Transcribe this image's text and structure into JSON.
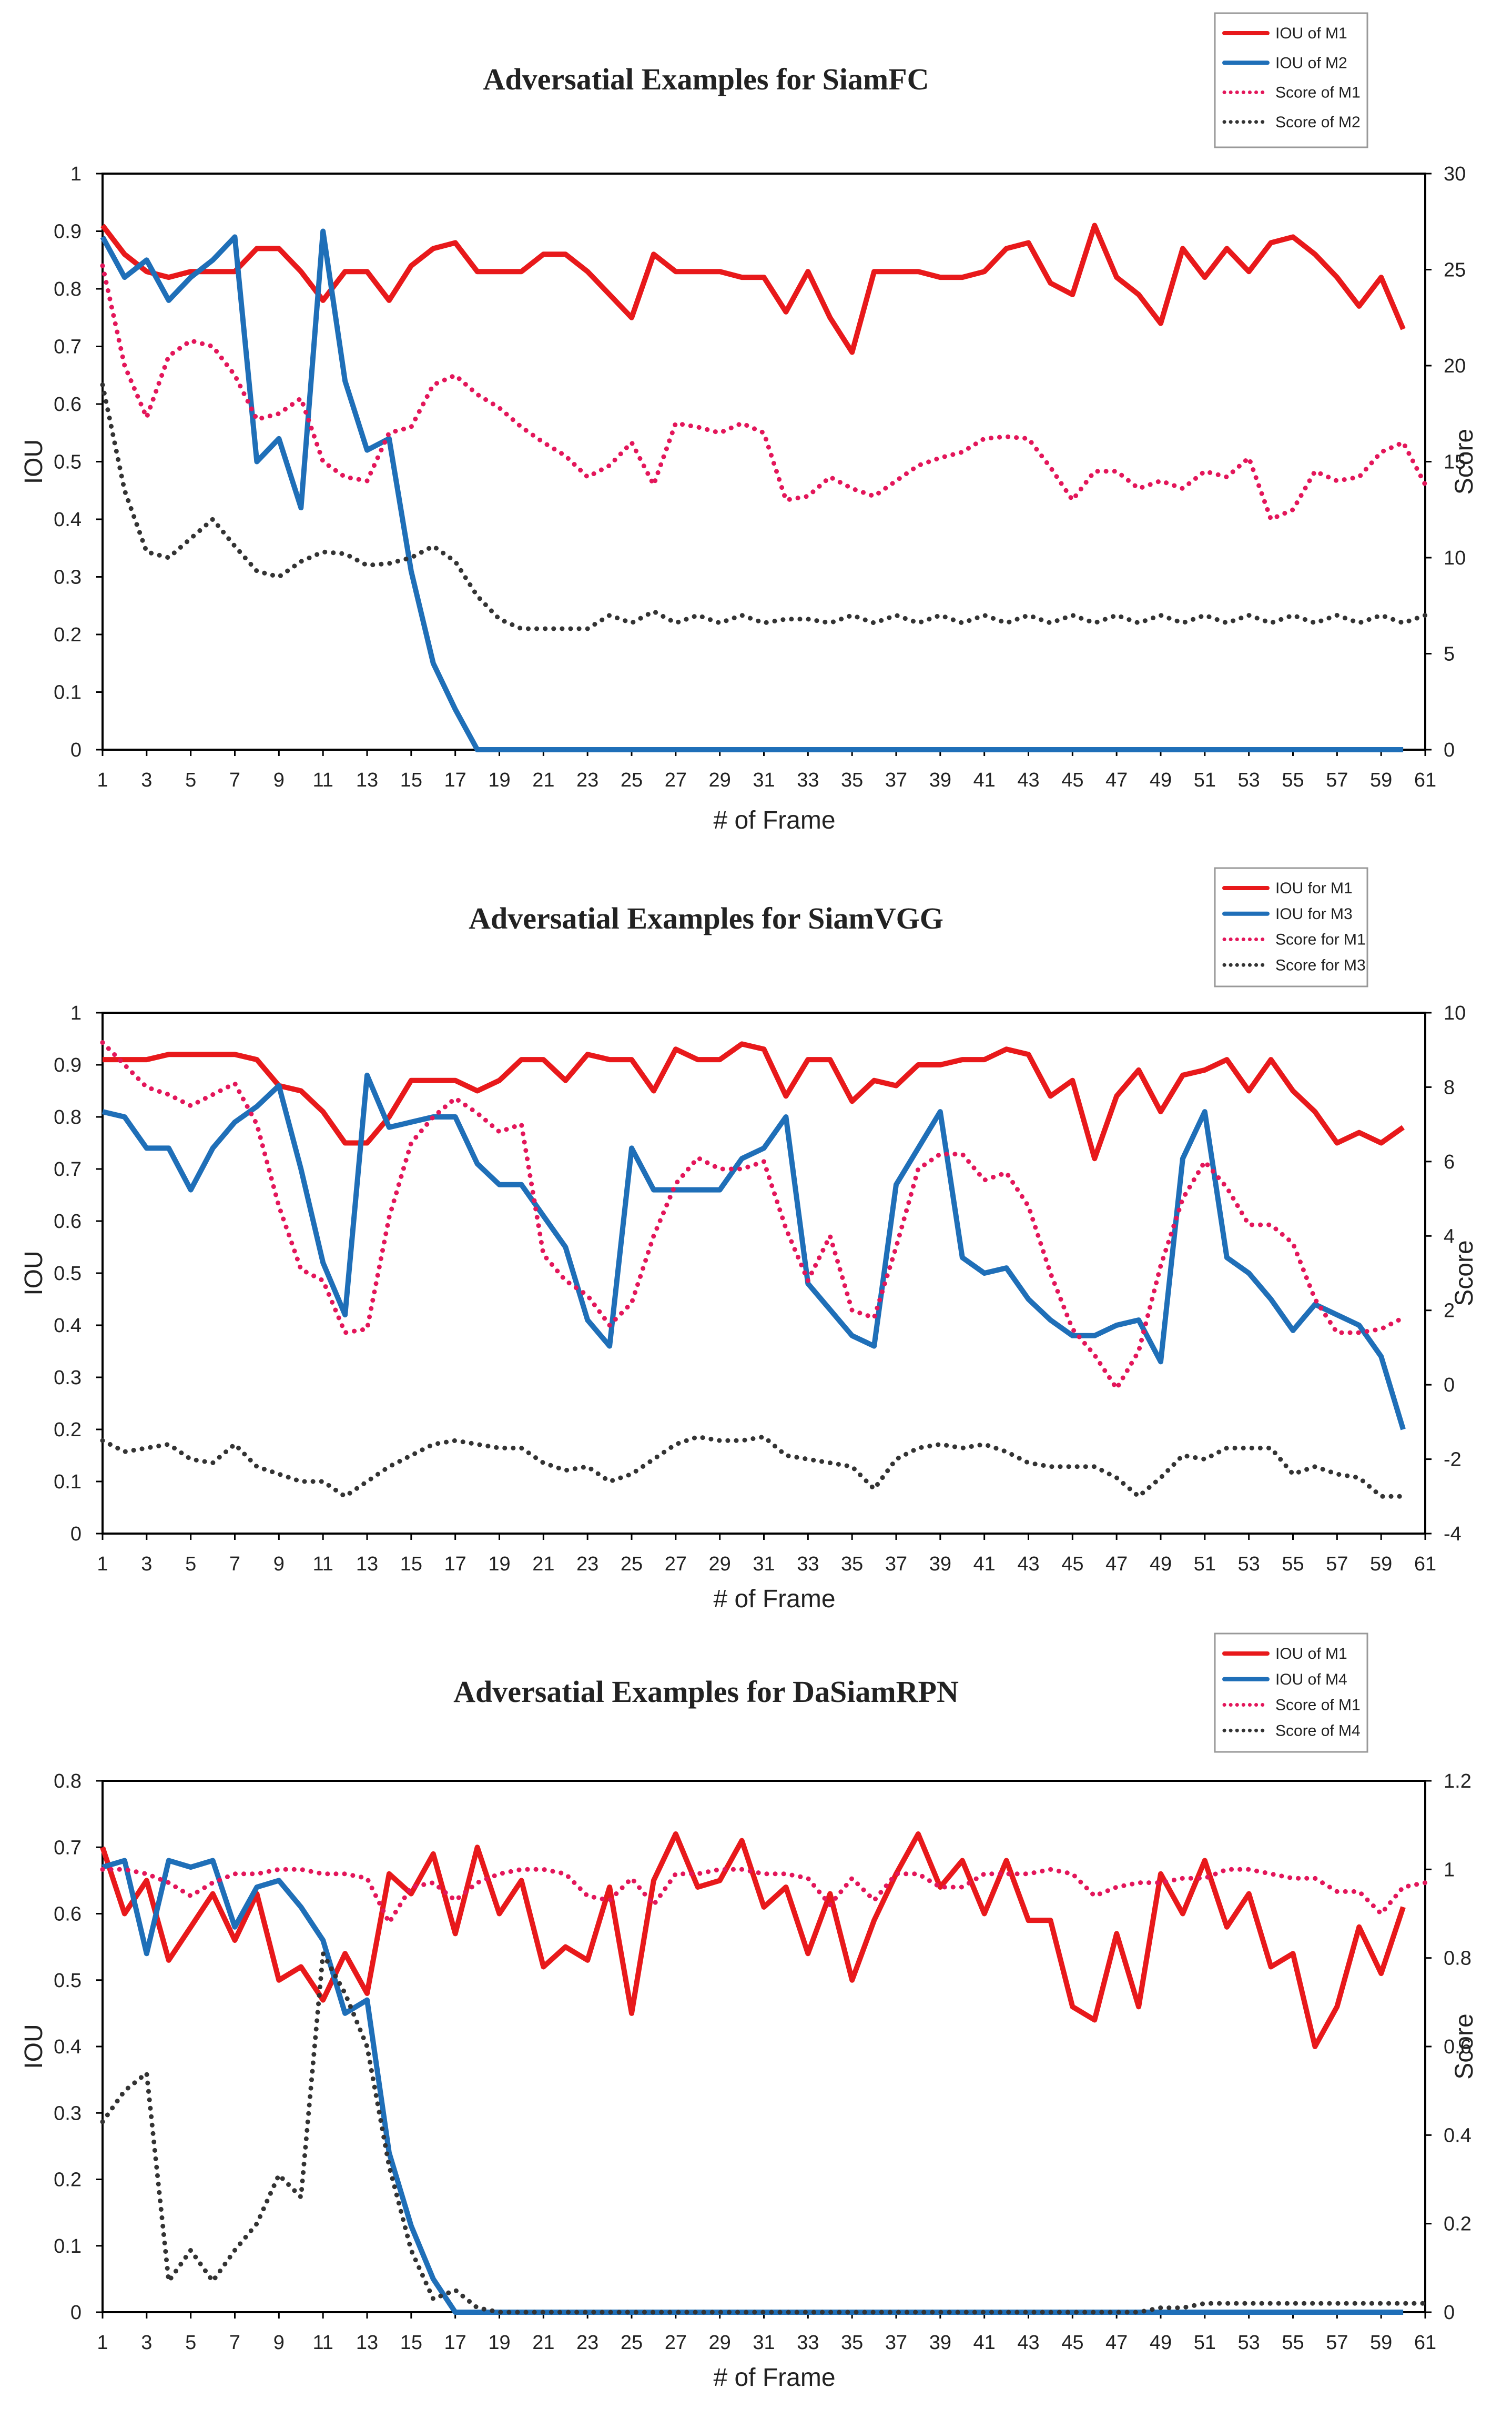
{
  "chart_data": [
    {
      "type": "line",
      "title": "Adversatial Examples for SiamFC",
      "xlabel": "# of Frame",
      "ylabel": "IOU",
      "y2label": "Score",
      "xlim": [
        1,
        61
      ],
      "xticks": [
        1,
        3,
        5,
        7,
        9,
        11,
        13,
        15,
        17,
        19,
        21,
        23,
        25,
        27,
        29,
        31,
        33,
        35,
        37,
        39,
        41,
        43,
        45,
        47,
        49,
        51,
        53,
        55,
        57,
        59,
        61
      ],
      "ylim": [
        0,
        1
      ],
      "yticks": [
        "0",
        "0.1",
        "0.2",
        "0.3",
        "0.4",
        "0.5",
        "0.6",
        "0.7",
        "0.8",
        "0.9",
        "1"
      ],
      "y2lim": [
        0,
        30
      ],
      "y2ticks": [
        "0",
        "5",
        "10",
        "15",
        "20",
        "25",
        "30"
      ],
      "legend_position": "top-right",
      "series": [
        {
          "name": "IOU of M1",
          "axis": "left",
          "color": "#e8191b",
          "style": "solid",
          "values": [
            0.91,
            0.86,
            0.83,
            0.82,
            0.83,
            0.83,
            0.83,
            0.87,
            0.87,
            0.83,
            0.78,
            0.83,
            0.83,
            0.78,
            0.84,
            0.87,
            0.88,
            0.83,
            0.83,
            0.83,
            0.86,
            0.86,
            0.83,
            0.79,
            0.75,
            0.86,
            0.83,
            0.83,
            0.83,
            0.82,
            0.82,
            0.76,
            0.83,
            0.75,
            0.69,
            0.83,
            0.83,
            0.83,
            0.82,
            0.82,
            0.83,
            0.87,
            0.88,
            0.81,
            0.79,
            0.91,
            0.82,
            0.79,
            0.74,
            0.87,
            0.82,
            0.87,
            0.83,
            0.88,
            0.89,
            0.86,
            0.82,
            0.77,
            0.82,
            0.73
          ]
        },
        {
          "name": "IOU of M2",
          "axis": "left",
          "color": "#1f6fb8",
          "style": "solid",
          "values": [
            0.89,
            0.82,
            0.85,
            0.78,
            0.82,
            0.85,
            0.89,
            0.5,
            0.54,
            0.42,
            0.9,
            0.64,
            0.52,
            0.54,
            0.31,
            0.15,
            0.07,
            0,
            0,
            0,
            0,
            0,
            0,
            0,
            0,
            0,
            0,
            0,
            0,
            0,
            0,
            0,
            0,
            0,
            0,
            0,
            0,
            0,
            0,
            0,
            0,
            0,
            0,
            0,
            0,
            0,
            0,
            0,
            0,
            0,
            0,
            0,
            0,
            0,
            0,
            0,
            0,
            0,
            0,
            0
          ]
        },
        {
          "name": "Score of M1",
          "axis": "right",
          "color": "#e3165a",
          "style": "dotted",
          "values": [
            25.2,
            20,
            17.3,
            20.5,
            21.3,
            21,
            19.5,
            17.2,
            17.5,
            18.3,
            15,
            14.2,
            14,
            16.5,
            16.8,
            19,
            19.5,
            18.5,
            17.8,
            16.8,
            16,
            15.3,
            14.2,
            14.8,
            16,
            13.8,
            17,
            16.8,
            16.5,
            17,
            16.5,
            13,
            13.2,
            14.2,
            13.6,
            13.2,
            14,
            14.8,
            15.2,
            15.5,
            16.2,
            16.3,
            16.2,
            14.7,
            13,
            14.5,
            14.5,
            13.6,
            14,
            13.6,
            14.5,
            14.2,
            15.2,
            12,
            12.5,
            14.5,
            14,
            14.2,
            15.5,
            16,
            13.8
          ]
        },
        {
          "name": "Score of M2",
          "axis": "right",
          "color": "#333333",
          "style": "dotted",
          "values": [
            19,
            13.5,
            10.3,
            10,
            11,
            12,
            10.6,
            9.3,
            9,
            9.8,
            10.3,
            10.2,
            9.6,
            9.7,
            10,
            10.6,
            9.8,
            8,
            6.8,
            6.3,
            6.3,
            6.3,
            6.3,
            7,
            6.6,
            7.2,
            6.6,
            7,
            6.6,
            7,
            6.6,
            6.8,
            6.8,
            6.6,
            7,
            6.6,
            7,
            6.6,
            7,
            6.6,
            7,
            6.6,
            7,
            6.6,
            7,
            6.6,
            7,
            6.6,
            7,
            6.6,
            7,
            6.6,
            7,
            6.6,
            7,
            6.6,
            7,
            6.6,
            7,
            6.6,
            7
          ]
        }
      ]
    },
    {
      "type": "line",
      "title": "Adversatial Examples for SiamVGG",
      "xlabel": "# of Frame",
      "ylabel": "IOU",
      "y2label": "Score",
      "xlim": [
        1,
        61
      ],
      "xticks": [
        1,
        3,
        5,
        7,
        9,
        11,
        13,
        15,
        17,
        19,
        21,
        23,
        25,
        27,
        29,
        31,
        33,
        35,
        37,
        39,
        41,
        43,
        45,
        47,
        49,
        51,
        53,
        55,
        57,
        59,
        61
      ],
      "ylim": [
        0,
        1
      ],
      "yticks": [
        "0",
        "0.1",
        "0.2",
        "0.3",
        "0.4",
        "0.5",
        "0.6",
        "0.7",
        "0.8",
        "0.9",
        "1"
      ],
      "y2lim": [
        -4,
        10
      ],
      "y2ticks": [
        "-4",
        "-2",
        "0",
        "2",
        "4",
        "6",
        "8",
        "10"
      ],
      "legend_position": "top-right",
      "series": [
        {
          "name": "IOU for M1",
          "axis": "left",
          "color": "#e8191b",
          "style": "solid",
          "values": [
            0.91,
            0.91,
            0.91,
            0.92,
            0.92,
            0.92,
            0.92,
            0.91,
            0.86,
            0.85,
            0.81,
            0.75,
            0.75,
            0.8,
            0.87,
            0.87,
            0.87,
            0.85,
            0.87,
            0.91,
            0.91,
            0.87,
            0.92,
            0.91,
            0.91,
            0.85,
            0.93,
            0.91,
            0.91,
            0.94,
            0.93,
            0.84,
            0.91,
            0.91,
            0.83,
            0.87,
            0.86,
            0.9,
            0.9,
            0.91,
            0.91,
            0.93,
            0.92,
            0.84,
            0.87,
            0.72,
            0.84,
            0.89,
            0.81,
            0.88,
            0.89,
            0.91,
            0.85,
            0.91,
            0.85,
            0.81,
            0.75,
            0.77,
            0.75,
            0.78
          ]
        },
        {
          "name": "IOU for M3",
          "axis": "left",
          "color": "#1f6fb8",
          "style": "solid",
          "values": [
            0.81,
            0.8,
            0.74,
            0.74,
            0.66,
            0.74,
            0.79,
            0.82,
            0.86,
            0.7,
            0.52,
            0.42,
            0.88,
            0.78,
            0.79,
            0.8,
            0.8,
            0.71,
            0.67,
            0.67,
            0.61,
            0.55,
            0.41,
            0.36,
            0.74,
            0.66,
            0.66,
            0.66,
            0.66,
            0.72,
            0.74,
            0.8,
            0.48,
            0.43,
            0.38,
            0.36,
            0.67,
            0.74,
            0.81,
            0.53,
            0.5,
            0.51,
            0.45,
            0.41,
            0.38,
            0.38,
            0.4,
            0.41,
            0.33,
            0.72,
            0.81,
            0.53,
            0.5,
            0.45,
            0.39,
            0.44,
            0.42,
            0.4,
            0.34,
            0.2
          ]
        },
        {
          "name": "Score for M1",
          "axis": "right",
          "color": "#e3165a",
          "style": "dotted",
          "values": [
            9.2,
            8.6,
            8.0,
            7.8,
            7.5,
            7.8,
            8.1,
            7.0,
            4.8,
            3.1,
            2.8,
            1.4,
            1.5,
            4.5,
            6.5,
            7.2,
            7.7,
            7.3,
            6.8,
            7.0,
            3.5,
            2.8,
            2.4,
            1.6,
            2.2,
            4.0,
            5.4,
            6.1,
            5.8,
            5.8,
            6.0,
            4.2,
            2.8,
            4.0,
            2.0,
            1.8,
            3.7,
            5.8,
            6.2,
            6.2,
            5.5,
            5.7,
            4.8,
            3.0,
            1.5,
            0.8,
            -0.1,
            0.9,
            3.2,
            5.0,
            6.0,
            5.3,
            4.3,
            4.3,
            3.8,
            2.3,
            1.4,
            1.4,
            1.5,
            1.8
          ]
        },
        {
          "name": "Score for M3",
          "axis": "right",
          "color": "#333333",
          "style": "dotted",
          "values": [
            -1.5,
            -1.8,
            -1.7,
            -1.6,
            -2.0,
            -2.1,
            -1.6,
            -2.2,
            -2.4,
            -2.6,
            -2.6,
            -3.0,
            -2.6,
            -2.2,
            -1.9,
            -1.6,
            -1.5,
            -1.6,
            -1.7,
            -1.7,
            -2.1,
            -2.3,
            -2.2,
            -2.6,
            -2.4,
            -2.0,
            -1.6,
            -1.4,
            -1.5,
            -1.5,
            -1.4,
            -1.9,
            -2.0,
            -2.1,
            -2.2,
            -2.8,
            -2.0,
            -1.7,
            -1.6,
            -1.7,
            -1.6,
            -1.8,
            -2.1,
            -2.2,
            -2.2,
            -2.2,
            -2.5,
            -3.0,
            -2.5,
            -1.9,
            -2.0,
            -1.7,
            -1.7,
            -1.7,
            -2.4,
            -2.2,
            -2.4,
            -2.5,
            -3.0,
            -3.0
          ]
        }
      ]
    },
    {
      "type": "line",
      "title": "Adversatial Examples for DaSiamRPN",
      "xlabel": "# of Frame",
      "ylabel": "IOU",
      "y2label": "Score",
      "xlim": [
        1,
        61
      ],
      "xticks": [
        1,
        3,
        5,
        7,
        9,
        11,
        13,
        15,
        17,
        19,
        21,
        23,
        25,
        27,
        29,
        31,
        33,
        35,
        37,
        39,
        41,
        43,
        45,
        47,
        49,
        51,
        53,
        55,
        57,
        59,
        61
      ],
      "ylim": [
        0,
        0.8
      ],
      "yticks": [
        "0",
        "0.1",
        "0.2",
        "0.3",
        "0.4",
        "0.5",
        "0.6",
        "0.7",
        "0.8"
      ],
      "y2lim": [
        0,
        1.2
      ],
      "y2ticks": [
        "0",
        "0.2",
        "0.4",
        "0.6",
        "0.8",
        "1",
        "1.2"
      ],
      "legend_position": "top-right",
      "series": [
        {
          "name": "IOU of M1",
          "axis": "left",
          "color": "#e8191b",
          "style": "solid",
          "values": [
            0.7,
            0.6,
            0.65,
            0.53,
            0.58,
            0.63,
            0.56,
            0.63,
            0.5,
            0.52,
            0.47,
            0.54,
            0.48,
            0.66,
            0.63,
            0.69,
            0.57,
            0.7,
            0.6,
            0.65,
            0.52,
            0.55,
            0.53,
            0.64,
            0.45,
            0.65,
            0.72,
            0.64,
            0.65,
            0.71,
            0.61,
            0.64,
            0.54,
            0.63,
            0.5,
            0.59,
            0.66,
            0.72,
            0.64,
            0.68,
            0.6,
            0.68,
            0.59,
            0.59,
            0.46,
            0.44,
            0.57,
            0.46,
            0.66,
            0.6,
            0.68,
            0.58,
            0.63,
            0.52,
            0.54,
            0.4,
            0.46,
            0.58,
            0.51,
            0.61
          ]
        },
        {
          "name": "IOU of M4",
          "axis": "left",
          "color": "#1f6fb8",
          "style": "solid",
          "values": [
            0.67,
            0.68,
            0.54,
            0.68,
            0.67,
            0.68,
            0.58,
            0.64,
            0.65,
            0.61,
            0.56,
            0.45,
            0.47,
            0.24,
            0.13,
            0.05,
            0,
            0,
            0,
            0,
            0,
            0,
            0,
            0,
            0,
            0,
            0,
            0,
            0,
            0,
            0,
            0,
            0,
            0,
            0,
            0,
            0,
            0,
            0,
            0,
            0,
            0,
            0,
            0,
            0,
            0,
            0,
            0,
            0,
            0,
            0,
            0,
            0,
            0,
            0,
            0,
            0,
            0,
            0,
            0
          ]
        },
        {
          "name": "Score of M1",
          "axis": "right",
          "color": "#e3165a",
          "style": "dotted",
          "values": [
            1.0,
            1.0,
            0.99,
            0.97,
            0.94,
            0.97,
            0.99,
            0.99,
            1.0,
            1.0,
            0.99,
            0.99,
            0.98,
            0.88,
            0.96,
            0.97,
            0.93,
            0.97,
            0.99,
            1.0,
            1.0,
            0.99,
            0.94,
            0.93,
            0.98,
            0.92,
            0.99,
            0.99,
            1.0,
            1.0,
            0.99,
            0.99,
            0.98,
            0.92,
            0.98,
            0.93,
            0.99,
            0.99,
            0.96,
            0.96,
            0.99,
            0.99,
            0.99,
            1.0,
            0.99,
            0.94,
            0.96,
            0.97,
            0.97,
            0.98,
            0.98,
            1.0,
            1.0,
            0.99,
            0.98,
            0.98,
            0.95,
            0.95,
            0.9,
            0.96,
            0.97
          ]
        },
        {
          "name": "Score of M4",
          "axis": "right",
          "color": "#333333",
          "style": "dotted",
          "values": [
            0.43,
            0.5,
            0.54,
            0.07,
            0.14,
            0.07,
            0.14,
            0.2,
            0.31,
            0.26,
            0.81,
            0.72,
            0.6,
            0.33,
            0.14,
            0.03,
            0.05,
            0.01,
            0,
            0,
            0,
            0,
            0,
            0,
            0,
            0,
            0,
            0,
            0,
            0,
            0,
            0,
            0,
            0,
            0,
            0,
            0,
            0,
            0,
            0,
            0,
            0,
            0,
            0,
            0,
            0,
            0,
            0,
            0.01,
            0.01,
            0.02,
            0.02,
            0.02,
            0.02,
            0.02,
            0.02,
            0.02,
            0.02,
            0.02,
            0.02,
            0.02
          ]
        }
      ]
    }
  ]
}
